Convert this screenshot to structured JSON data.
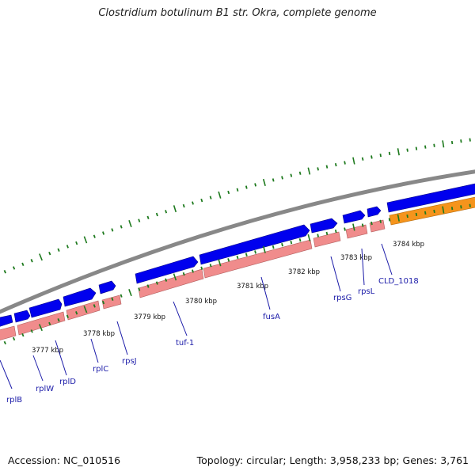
{
  "title": "Clostridium botulinum B1 str. Okra, complete genome",
  "accession": "Accession: NC_010516",
  "summary": "Topology: circular; Length: 3,958,233 bp; Genes: 3,761",
  "colors": {
    "backbone": "#888888",
    "forward_gene": "#0000ee",
    "forward_gene_edge": "#00008a",
    "cds": "#f08c8c",
    "cds_edge": "#b05a5a",
    "orange_gene": "#f5941c",
    "orange_gene_edge": "#b86a0a",
    "tick": "#1e7a1e",
    "label_line": "#1a1aa8"
  },
  "kbp_labels": [
    "3777 kbp",
    "3778 kbp",
    "3779 kbp",
    "3780 kbp",
    "3781 kbp",
    "3782 kbp",
    "3783 kbp",
    "3784 kbp"
  ],
  "genes": [
    "rplB",
    "rplW",
    "rplD",
    "rplC",
    "rpsJ",
    "tuf-1",
    "fusA",
    "rpsG",
    "rpsL",
    "CLD_1018"
  ]
}
